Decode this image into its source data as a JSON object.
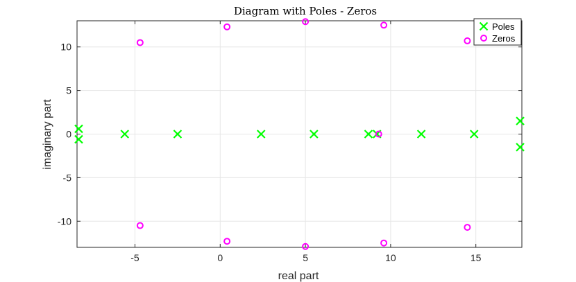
{
  "chart_data": {
    "type": "scatter",
    "title": "Diagram with Poles - Zeros",
    "xlabel": "real part",
    "ylabel": "imaginary part",
    "xlim": [
      -8.4,
      17.7
    ],
    "ylim": [
      -13,
      13
    ],
    "xticks": [
      -5,
      0,
      5,
      10,
      15
    ],
    "yticks": [
      -10,
      -5,
      0,
      5,
      10
    ],
    "xtick_labels": [
      "-5",
      "0",
      "5",
      "10",
      "15"
    ],
    "ytick_labels": [
      "-10",
      "-5",
      "0",
      "5",
      "10"
    ],
    "grid": true,
    "legend_position": "top-right",
    "series": [
      {
        "name": "Poles",
        "marker": "x",
        "color": "#00ff00",
        "points": [
          [
            -8.3,
            0.6
          ],
          [
            -8.3,
            -0.6
          ],
          [
            -5.6,
            0
          ],
          [
            -2.5,
            0
          ],
          [
            2.4,
            0
          ],
          [
            5.5,
            0
          ],
          [
            8.7,
            0
          ],
          [
            9.2,
            0
          ],
          [
            11.8,
            0
          ],
          [
            14.9,
            0
          ],
          [
            17.6,
            1.5
          ],
          [
            17.6,
            -1.5
          ]
        ]
      },
      {
        "name": "Zeros",
        "marker": "o",
        "color": "#ff00ff",
        "points": [
          [
            -4.7,
            10.5
          ],
          [
            -4.7,
            -10.5
          ],
          [
            0.4,
            12.3
          ],
          [
            0.4,
            -12.3
          ],
          [
            5.0,
            12.9
          ],
          [
            5.0,
            -12.9
          ],
          [
            9.6,
            12.5
          ],
          [
            9.6,
            -12.5
          ],
          [
            14.5,
            10.7
          ],
          [
            14.5,
            -10.7
          ],
          [
            9.3,
            0
          ]
        ]
      }
    ]
  }
}
